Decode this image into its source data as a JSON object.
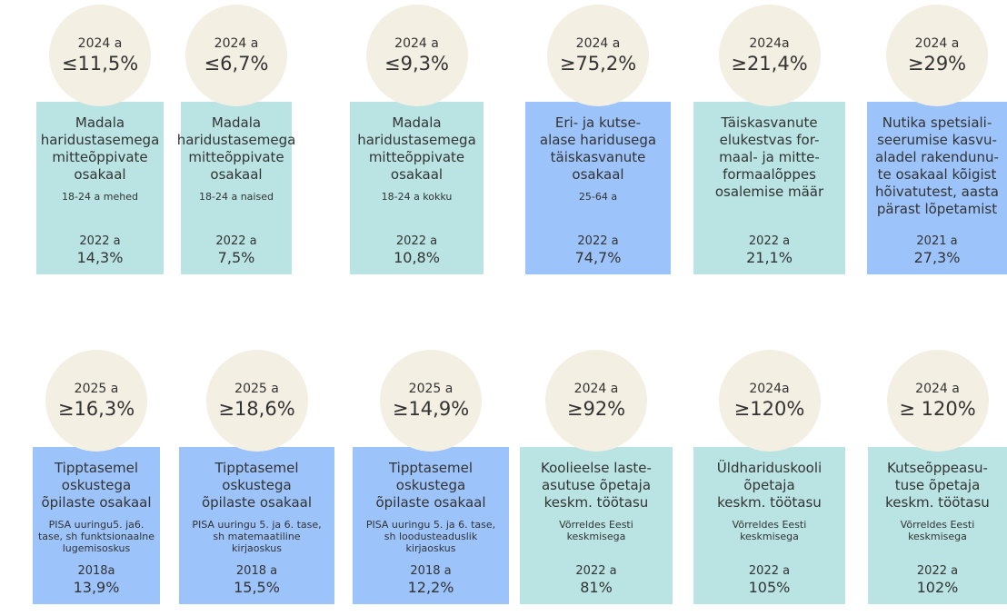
{
  "rows": [
    [
      {
        "target_year": "2024 a",
        "target": "≤11,5%",
        "title": "Madala\nharidustasemega\nmitteõppivate\nosakaal",
        "subtitle": "18-24 a mehed",
        "base_year": "2022 a",
        "base_value": "14,3%",
        "color": "#b9e4e3"
      },
      {
        "target_year": "2024 a",
        "target": "≤6,7%",
        "title": "Madala\nharidustasemega\nmitteõppivate\nosakaal",
        "subtitle": "18-24 a naised",
        "base_year": "2022 a",
        "base_value": "7,5%",
        "color": "#b9e4e3"
      },
      {
        "target_year": "2024 a",
        "target": "≤9,3%",
        "title": "Madala\nharidustasemega\nmitteõppivate\nosakaal",
        "subtitle": "18-24 a kokku",
        "base_year": "2022 a",
        "base_value": "10,8%",
        "color": "#b9e4e3"
      },
      {
        "target_year": "2024 a",
        "target": "≥75,2%",
        "title": "Eri- ja kutse-\nalase haridusega\ntäiskasvanute\nosakaal",
        "subtitle": "25-64 a",
        "base_year": "2022 a",
        "base_value": "74,7%",
        "color": "#9dc3fb"
      },
      {
        "target_year": "2024a",
        "target": "≥21,4%",
        "title": "Täiskasvanute\nelukestvas for-\nmaal- ja mitte-\nformaalõppes\nosalemise määr",
        "base_year": "2022 a",
        "base_value": "21,1%",
        "color": "#b9e4e3"
      },
      {
        "target_year": "2024 a",
        "target": "≥29%",
        "title": "Nutika spetsiali-\nseerumise kasvu-\naladel rakendunu-\nte osakaal kõigist\nhõivatutest, aasta\npärast lõpetamist",
        "base_year": "2021 a",
        "base_value": "27,3%",
        "color": "#9dc3fb"
      }
    ],
    [
      {
        "target_year": "2025 a",
        "target": "≥16,3%",
        "title": "Tipptasemel\noskustega\nõpilaste osakaal",
        "subtitle": "PISA uuringu5. ja6.\ntase, sh funktsionaalne\nlugemisoskus",
        "base_year": "2018a",
        "base_value": "13,9%",
        "color": "#9dc3fb"
      },
      {
        "target_year": "2025 a",
        "target": "≥18,6%",
        "title": "Tipptasemel\noskustega\nõpilaste osakaal",
        "subtitle": "PISA uuringu 5. ja 6. tase,\nsh matemaatiline\nkirjaoskus",
        "base_year": "2018 a",
        "base_value": "15,5%",
        "color": "#9dc3fb"
      },
      {
        "target_year": "2025 a",
        "target": "≥14,9%",
        "title": "Tipptasemel\noskustega\nõpilaste osakaal",
        "subtitle": "PISA uuringu 5. ja 6. tase,\nsh loodusteaduslik\nkirjaoskus",
        "base_year": "2018 a",
        "base_value": "12,2%",
        "color": "#9dc3fb"
      },
      {
        "target_year": "2024 a",
        "target": "≥92%",
        "title": "Koolieelse laste-\nasutuse õpetaja\nkeskm. töötasu",
        "subtitle": "Võrreldes Eesti\nkeskmisega",
        "base_year": "2022 a",
        "base_value": "81%",
        "color": "#b9e4e3"
      },
      {
        "target_year": "2024a",
        "target": "≥120%",
        "title": "Üldhariduskooli\nõpetaja\nkeskm. töötasu",
        "subtitle": "Võrreldes Eesti\nkeskmisega",
        "base_year": "2022 a",
        "base_value": "105%",
        "color": "#b9e4e3"
      },
      {
        "target_year": "2024 a",
        "target": "≥ 120%",
        "title": "Kutseõppeasu-\ntuse õpetaja\nkeskm. töötasu",
        "subtitle": "Võrreldes Eesti\nkeskmisega",
        "base_year": "2022 a",
        "base_value": "102%",
        "color": "#b9e4e3"
      }
    ]
  ]
}
